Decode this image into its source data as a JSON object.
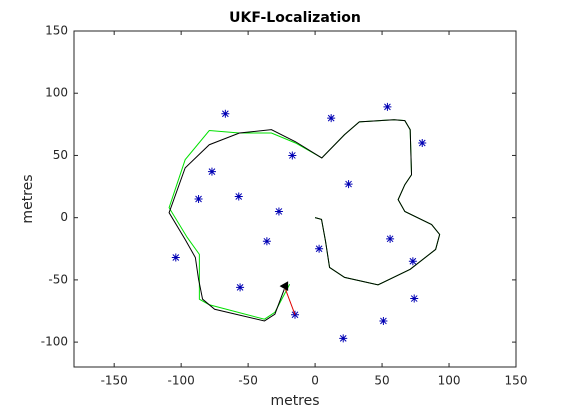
{
  "chart_data": {
    "type": "scatter",
    "title": "UKF-Localization",
    "xlabel": "metres",
    "ylabel": "metres",
    "xlim": [
      -180,
      150
    ],
    "ylim": [
      -120,
      150
    ],
    "xticks": [
      -150,
      -100,
      -50,
      0,
      50,
      100,
      150
    ],
    "yticks": [
      -100,
      -50,
      0,
      50,
      100,
      150
    ],
    "series": [
      {
        "mode": "markers",
        "marker": "asterisk",
        "color": "#0000b4",
        "x": [
          -67,
          12,
          54,
          80,
          -17,
          25,
          -77,
          -87,
          -57,
          -27,
          -36,
          56,
          3,
          -104,
          73,
          -56,
          -15,
          74,
          51,
          21
        ],
        "y": [
          83.5,
          80,
          89,
          60,
          50,
          27,
          37,
          15,
          17,
          5,
          -19,
          -17,
          -25,
          -32,
          -35,
          -56,
          -78,
          -65,
          -83,
          -97
        ]
      },
      {
        "mode": "line",
        "color": "#00e000",
        "x": [
          0,
          4.8,
          7.8,
          10.8,
          22,
          47,
          71,
          90,
          93,
          87,
          67,
          62,
          67,
          72,
          71,
          67,
          59,
          33,
          22,
          5,
          -14.6,
          -32.6,
          -56.5,
          -79,
          -97,
          -109,
          -95.4,
          -86.4,
          -86.4,
          -79,
          -37.8,
          -30,
          -19
        ],
        "y": [
          0,
          -1.4,
          -19,
          -40,
          -48,
          -54,
          -41.5,
          -25.5,
          -13.5,
          -5.5,
          5,
          14.5,
          26.5,
          34.5,
          70.7,
          78,
          78.7,
          77,
          66.7,
          48,
          60,
          68,
          68,
          70,
          46.6,
          8,
          -16,
          -29.5,
          -65.5,
          -70,
          -81.6,
          -76,
          -53.5
        ]
      },
      {
        "mode": "line",
        "color": "#000000",
        "x": [
          0,
          4.8,
          7.8,
          10.8,
          22,
          47,
          71,
          90,
          93,
          87,
          67,
          62,
          67,
          72,
          71,
          67,
          59,
          33,
          22,
          5,
          -14.6,
          -32.6,
          -56.5,
          -79,
          -97,
          -109,
          -97,
          -89.4,
          -87,
          -84,
          -75,
          -37.8,
          -30,
          -23
        ],
        "y": [
          0,
          -1.4,
          -19,
          -40,
          -48,
          -54,
          -41.5,
          -25.5,
          -13.5,
          -5.5,
          5,
          14.5,
          26.5,
          34.5,
          70.7,
          78,
          78.7,
          77,
          66.7,
          48,
          61,
          70.7,
          68,
          58.6,
          40,
          4,
          -17.5,
          -32,
          -49.5,
          -65.5,
          -73.6,
          -83,
          -77.5,
          -57.5
        ]
      },
      {
        "mode": "line",
        "color": "#e00000",
        "x": [
          -23,
          -15
        ],
        "y": [
          -55,
          -78
        ]
      },
      {
        "mode": "markers",
        "marker": "triangle",
        "color": "#000000",
        "x": [
          -22
        ],
        "y": [
          -55
        ]
      }
    ]
  }
}
